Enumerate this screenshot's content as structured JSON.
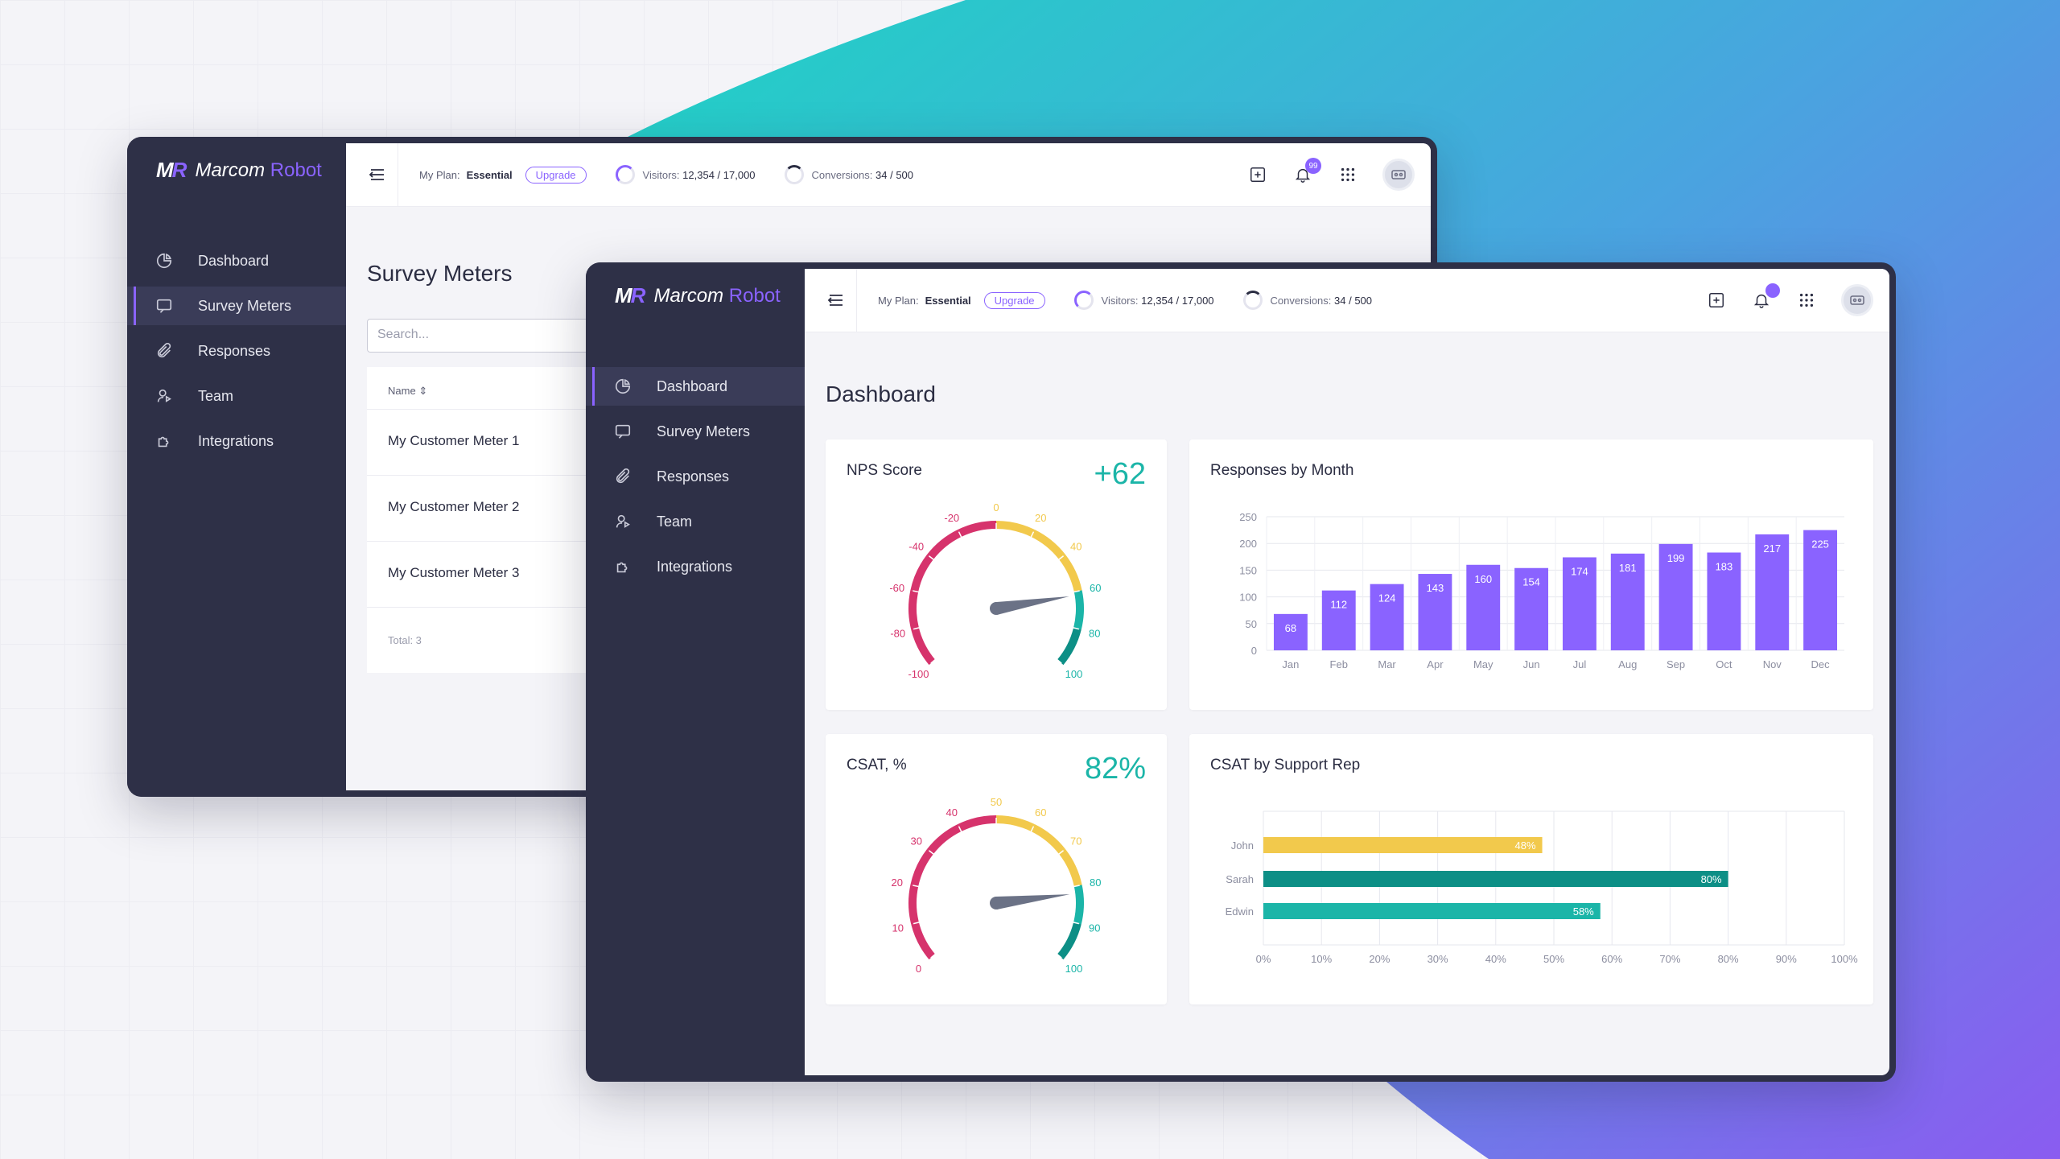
{
  "brand": {
    "mark_a": "M",
    "mark_b": "R",
    "name": "Marcom",
    "name_accent": "Robot"
  },
  "nav": [
    {
      "label": "Dashboard",
      "icon": "pie-chart-icon"
    },
    {
      "label": "Survey Meters",
      "icon": "chat-bubble-icon"
    },
    {
      "label": "Responses",
      "icon": "paperclip-icon"
    },
    {
      "label": "Team",
      "icon": "users-icon"
    },
    {
      "label": "Integrations",
      "icon": "puzzle-icon"
    }
  ],
  "topbar": {
    "plan_label": "My Plan:",
    "plan_value": "Essential",
    "upgrade_label": "Upgrade",
    "visitors_label": "Visitors:",
    "visitors_value": "12,354 / 17,000",
    "conversions_label": "Conversions:",
    "conversions_value": "34 / 500",
    "notifications_count": "99"
  },
  "back_window": {
    "title": "Survey Meters",
    "search_placeholder": "Search...",
    "column_name": "Name",
    "rows": [
      "My Customer Meter 1",
      "My Customer Meter 2",
      "My Customer Meter 3"
    ],
    "total": "Total: 3"
  },
  "front_window": {
    "title": "Dashboard",
    "nps": {
      "title": "NPS Score",
      "value": "+62",
      "ticks": [
        "-100",
        "-80",
        "-60",
        "-40",
        "-20",
        "0",
        "20",
        "40",
        "60",
        "80",
        "100"
      ],
      "score": 62
    },
    "csat": {
      "title": "CSAT, %",
      "value": "82%",
      "ticks": [
        "0",
        "10",
        "20",
        "30",
        "40",
        "50",
        "60",
        "70",
        "80",
        "90",
        "100"
      ],
      "score": 82
    }
  },
  "colors": {
    "accent": "#8a63ff",
    "teal": "#1bb5a8",
    "dark_teal": "#0d8f86",
    "yellow": "#f2c94c",
    "pink": "#d6336c",
    "sidebar": "#2e3047"
  },
  "chart_data": [
    {
      "type": "bar",
      "title": "Responses by Month",
      "categories": [
        "Jan",
        "Feb",
        "Mar",
        "Apr",
        "May",
        "Jun",
        "Jul",
        "Aug",
        "Sep",
        "Oct",
        "Nov",
        "Dec"
      ],
      "values": [
        68,
        112,
        124,
        143,
        160,
        154,
        174,
        181,
        199,
        183,
        217,
        225
      ],
      "ylim": [
        0,
        250
      ],
      "yticks": [
        "0",
        "50",
        "100",
        "150",
        "200",
        "250"
      ],
      "grid": true,
      "color": "#8a63ff"
    },
    {
      "type": "bar",
      "orientation": "horizontal",
      "title": "CSAT by Support Rep",
      "categories": [
        "John",
        "Sarah",
        "Edwin"
      ],
      "values": [
        48,
        80,
        58
      ],
      "value_labels": [
        "48%",
        "80%",
        "58%"
      ],
      "bar_colors": [
        "#f2c94c",
        "#0d8f86",
        "#1bb5a8"
      ],
      "xlim": [
        0,
        100
      ],
      "xticks": [
        "0%",
        "10%",
        "20%",
        "30%",
        "40%",
        "50%",
        "60%",
        "70%",
        "80%",
        "90%",
        "100%"
      ],
      "grid": true
    }
  ]
}
